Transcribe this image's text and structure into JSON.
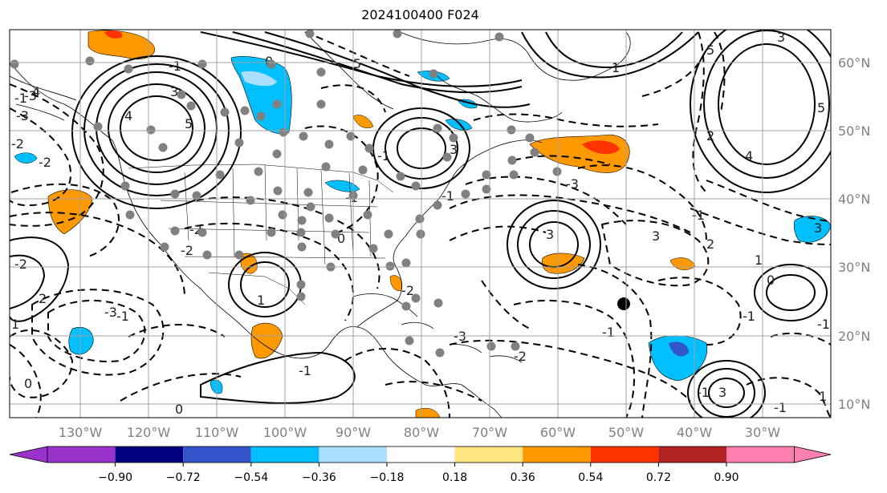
{
  "title": "2024100400 F024",
  "lon_labels": [
    "130°W",
    "120°W",
    "110°W",
    "100°W",
    "90°W",
    "80°W",
    "70°W",
    "60°W",
    "50°W",
    "40°W",
    "30°W"
  ],
  "lat_labels": [
    "60°N",
    "50°N",
    "40°N",
    "30°N",
    "20°N",
    "10°N"
  ],
  "colorbar": {
    "colors": [
      "#9933cc",
      "#000080",
      "#3355cc",
      "#00bfff",
      "#aadeff",
      "#ffffff",
      "#ffe680",
      "#ff9900",
      "#ff3300",
      "#b22222",
      "#ff80b0"
    ],
    "tick_labels": [
      "−0.90",
      "−0.72",
      "−0.54",
      "−0.36",
      "−0.18",
      "0.18",
      "0.36",
      "0.54",
      "0.72",
      "0.90"
    ]
  },
  "contour_labels": [
    "5",
    "3",
    "4",
    "3",
    "2",
    "5",
    "4",
    "3",
    "1",
    "3",
    "1",
    "2",
    "0",
    "1",
    "3",
    "2",
    "1",
    "5",
    "-3",
    "3",
    "4",
    "5",
    "1",
    "3",
    "-3",
    "-3",
    "-1",
    "-1",
    "-1",
    "-3",
    "-1",
    "-3",
    "-1",
    "-2",
    "-1",
    "-2",
    "-1",
    "-2",
    "-1",
    "-1",
    "0",
    "0",
    "0",
    "-2",
    "-1",
    "0",
    "-1",
    "-2",
    "-1",
    "-2",
    "-2",
    "-1"
  ]
}
